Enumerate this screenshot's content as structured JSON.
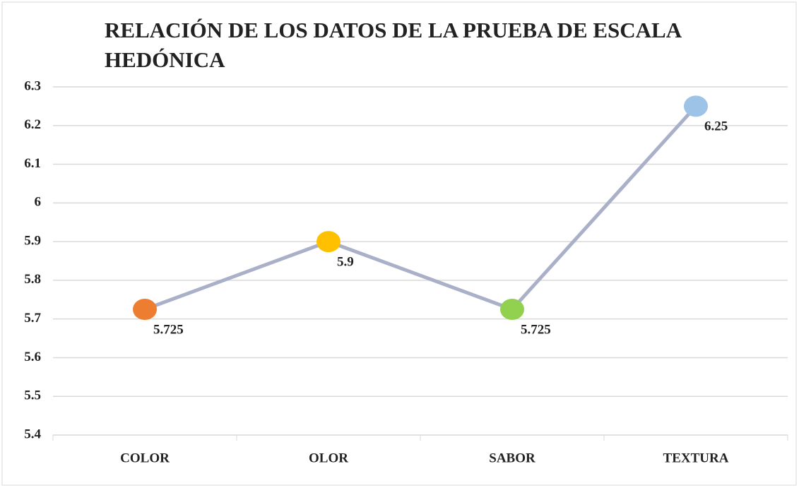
{
  "chart_data": {
    "type": "line",
    "title": "RELACIÓN DE LOS DATOS DE LA PRUEBA DE ESCALA HEDÓNICA",
    "categories": [
      "COLOR",
      "OLOR",
      "SABOR",
      "TEXTURA"
    ],
    "series": [
      {
        "values": [
          5.725,
          5.9,
          5.725,
          6.25
        ],
        "color": "#a9b0c8",
        "marker_colors": [
          "#ed7d31",
          "#ffc000",
          "#92d050",
          "#9dc3e6"
        ]
      }
    ],
    "ylim": [
      5.4,
      6.3
    ],
    "yticks": [
      5.4,
      5.5,
      5.6,
      5.7,
      5.8,
      5.9,
      6,
      6.1,
      6.2,
      6.3
    ],
    "grid": true
  }
}
